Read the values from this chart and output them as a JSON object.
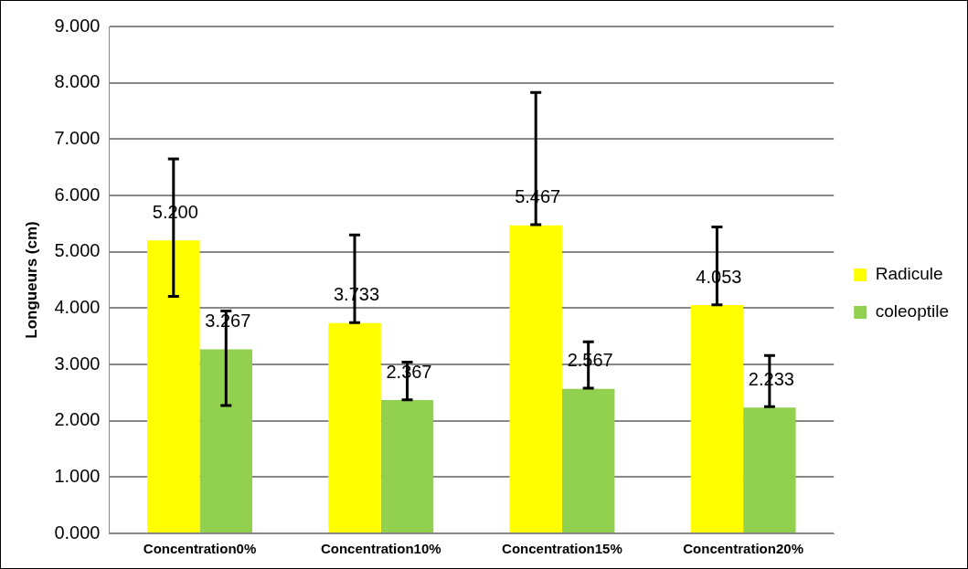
{
  "chart_data": {
    "type": "bar",
    "ylabel": "Longueurs (cm)",
    "categories": [
      "Concentration0%",
      "Concentration10%",
      "Concentration15%",
      "Concentration20%"
    ],
    "series": [
      {
        "name": "Radicule",
        "color": "#ffff00",
        "values": [
          5.2,
          3.733,
          5.467,
          4.053
        ],
        "value_labels": [
          "5.200",
          "3.733",
          "5.467",
          "4.053"
        ],
        "errors": [
          [
            4.21,
            6.65
          ],
          [
            3.74,
            5.3
          ],
          [
            5.48,
            7.83
          ],
          [
            4.06,
            5.44
          ]
        ]
      },
      {
        "name": "coleoptile",
        "color": "#92d050",
        "values": [
          3.267,
          2.367,
          2.567,
          2.233
        ],
        "value_labels": [
          "3.267",
          "2.367",
          "2.567",
          "2.233"
        ],
        "errors": [
          [
            2.27,
            3.95
          ],
          [
            2.37,
            3.04
          ],
          [
            2.58,
            3.4
          ],
          [
            2.25,
            3.16
          ]
        ]
      }
    ],
    "ylim": [
      0,
      9
    ],
    "yticks": [
      {
        "value": 0,
        "label": "0.000"
      },
      {
        "value": 1,
        "label": "1.000"
      },
      {
        "value": 2,
        "label": "2.000"
      },
      {
        "value": 3,
        "label": "3.000"
      },
      {
        "value": 4,
        "label": "4.000"
      },
      {
        "value": 5,
        "label": "5.000"
      },
      {
        "value": 6,
        "label": "6.000"
      },
      {
        "value": 7,
        "label": "7.000"
      },
      {
        "value": 8,
        "label": "8.000"
      },
      {
        "value": 9,
        "label": "9.000"
      }
    ],
    "grid": "y",
    "legend": "right"
  }
}
